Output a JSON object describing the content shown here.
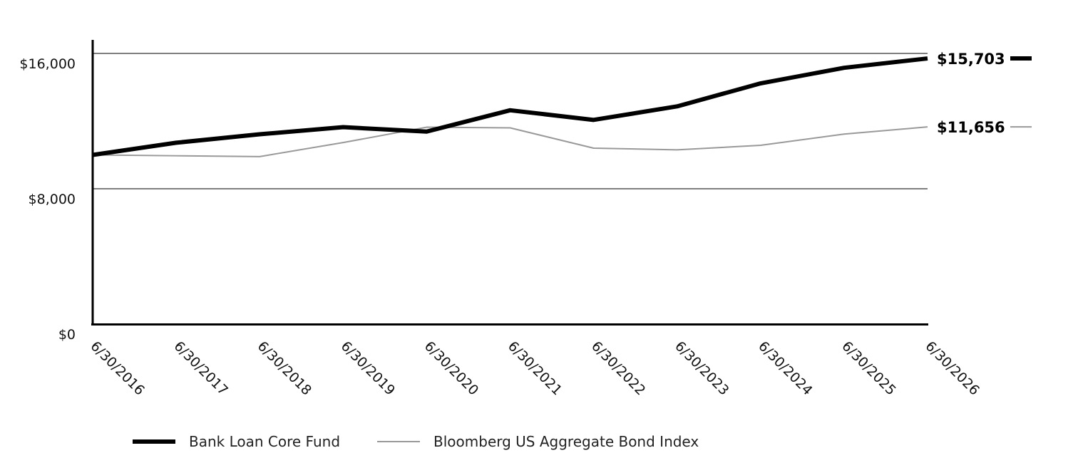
{
  "chart_data": {
    "type": "line",
    "x": [
      "6/30/2016",
      "6/30/2017",
      "6/30/2018",
      "6/30/2019",
      "6/30/2020",
      "6/30/2021",
      "6/30/2022",
      "6/30/2023",
      "6/30/2024",
      "6/30/2025",
      "6/30/2026"
    ],
    "series": [
      {
        "name": "Bank Loan Core Fund",
        "color": "#000000",
        "values": [
          10000,
          10720,
          11220,
          11640,
          11380,
          12640,
          12070,
          12870,
          14230,
          15150,
          15703
        ],
        "end_label": "$15,703"
      },
      {
        "name": "Bloomberg US Aggregate Bond Index",
        "color": "#999999",
        "values": [
          10000,
          9950,
          9900,
          10730,
          11640,
          11600,
          10400,
          10300,
          10570,
          11230,
          11656
        ],
        "end_label": "$11,656"
      }
    ],
    "y_ticks": [
      {
        "value": 0,
        "label": "$0"
      },
      {
        "value": 8000,
        "label": "$8,000"
      },
      {
        "value": 16000,
        "label": "$16,000"
      }
    ],
    "ylim": [
      0,
      16000
    ],
    "grid": true,
    "legend_position": "bottom-left"
  }
}
